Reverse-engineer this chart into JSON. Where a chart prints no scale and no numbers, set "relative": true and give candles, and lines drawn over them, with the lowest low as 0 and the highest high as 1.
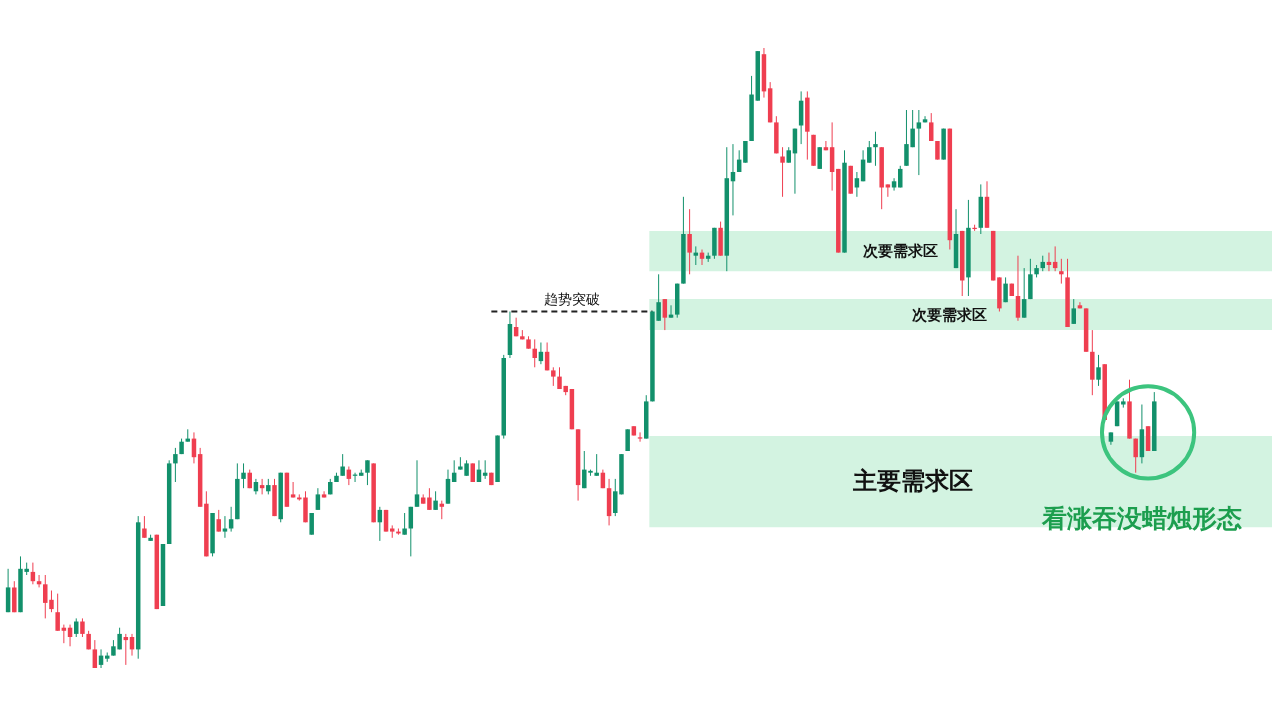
{
  "chart_data": {
    "type": "candlestick",
    "relative": true,
    "categories": [
      null,
      null,
      null,
      null,
      null,
      null,
      null,
      null,
      null,
      null,
      null,
      null,
      null,
      null,
      null,
      null,
      null,
      null,
      null,
      null,
      null,
      null,
      null,
      null,
      null,
      null,
      null,
      null,
      null,
      null,
      null,
      null,
      null,
      null,
      null,
      null,
      null,
      null,
      null,
      null,
      null,
      null,
      null,
      null,
      null,
      null,
      null,
      null,
      null,
      null,
      null,
      null,
      null,
      null,
      null,
      null,
      null,
      null,
      null,
      null,
      null,
      null,
      null,
      null,
      null,
      null,
      null,
      null,
      null,
      null,
      null,
      null,
      null,
      null,
      null,
      null,
      null,
      null,
      null,
      null,
      null,
      null,
      null,
      null,
      null,
      null,
      null,
      null,
      null,
      null,
      null,
      null,
      null,
      null,
      null,
      null,
      null,
      null,
      null,
      null,
      null,
      null,
      null,
      null,
      null,
      null,
      null,
      null,
      null,
      null,
      null,
      null,
      null,
      null,
      null,
      null,
      null,
      null,
      null,
      null,
      null,
      null,
      null,
      null,
      null,
      null,
      null,
      null,
      null,
      null,
      null,
      null,
      null,
      null,
      null,
      null,
      null,
      null,
      null,
      null,
      null,
      null,
      null,
      null,
      null,
      null,
      null,
      null,
      null,
      null,
      null,
      null,
      null,
      null,
      null,
      null,
      null,
      null,
      null,
      null,
      null,
      null,
      null,
      null,
      null,
      null,
      null,
      null,
      null,
      null,
      null,
      null,
      null,
      null,
      null,
      null,
      null,
      null,
      null,
      null,
      null,
      null,
      null,
      null,
      null,
      null
    ],
    "colors": [
      "#12906b",
      "#ef3e50",
      "#12906b",
      "#12906b",
      "#ef3e50",
      "#ef3e50",
      "#ef3e50",
      "#ef3e50",
      "#ef3e50",
      "#ef3e50",
      "#ef3e50",
      "#12906b",
      "#ef3e50",
      "#ef3e50",
      "#ef3e50",
      "#12906b",
      "#12906b",
      "#12906b",
      "#12906b",
      "#ef3e50",
      "#ef3e50",
      "#12906b",
      "#ef3e50",
      "#12906b",
      "#ef3e50",
      "#12906b",
      "#12906b",
      "#12906b",
      "#12906b",
      "#12906b",
      "#ef3e50",
      "#ef3e50",
      "#ef3e50",
      "#12906b",
      "#ef3e50",
      "#12906b",
      "#12906b",
      "#12906b",
      "#12906b",
      "#ef3e50",
      "#12906b",
      "#ef3e50",
      "#12906b",
      "#ef3e50",
      "#12906b",
      "#ef3e50",
      "#ef3e50",
      "#ef3e50",
      "#ef3e50",
      "#12906b",
      "#12906b",
      "#ef3e50",
      "#12906b",
      "#12906b",
      "#12906b",
      "#ef3e50",
      "#12906b",
      "#12906b",
      "#12906b",
      "#ef3e50",
      "#12906b",
      "#ef3e50",
      "#ef3e50",
      "#ef3e50",
      "#12906b",
      "#12906b",
      "#12906b",
      "#ef3e50",
      "#ef3e50",
      "#12906b",
      "#ef3e50",
      "#12906b",
      "#12906b",
      "#12906b",
      "#12906b",
      "#ef3e50",
      "#12906b",
      "#12906b",
      "#ef3e50",
      "#12906b",
      "#12906b",
      "#12906b",
      "#ef3e50",
      "#ef3e50",
      "#ef3e50",
      "#ef3e50",
      "#12906b",
      "#ef3e50",
      "#ef3e50",
      "#ef3e50",
      "#ef3e50",
      "#ef3e50",
      "#ef3e50",
      "#12906b",
      "#12906b",
      "#12906b",
      "#ef3e50",
      "#ef3e50",
      "#12906b",
      "#12906b",
      "#12906b",
      "#ef3e50",
      "#ef3e50",
      "#12906b",
      "#12906b",
      "#12906b",
      "#ef3e50",
      "#12906b",
      "#12906b",
      "#12906b",
      "#ef3e50",
      "#12906b",
      "#ef3e50",
      "#12906b",
      "#12906b",
      "#ef3e50",
      "#12906b",
      "#12906b",
      "#12906b",
      "#12906b",
      "#12906b",
      "#12906b",
      "#ef3e50",
      "#ef3e50",
      "#ef3e50",
      "#ef3e50",
      "#12906b",
      "#12906b",
      "#12906b",
      "#ef3e50",
      "#ef3e50",
      "#12906b",
      "#ef3e50",
      "#ef3e50",
      "#ef3e50",
      "#12906b",
      "#ef3e50",
      "#12906b",
      "#12906b",
      "#12906b",
      "#12906b",
      "#ef3e50",
      "#ef3e50",
      "#12906b",
      "#12906b",
      "#12906b",
      "#12906b",
      "#12906b",
      "#12906b",
      "#ef3e50",
      "#ef3e50",
      "#12906b",
      "#ef3e50",
      "#12906b",
      "#ef3e50",
      "#12906b",
      "#ef3e50",
      "#12906b",
      "#ef3e50",
      "#ef3e50",
      "#ef3e50",
      "#12906b",
      "#ef3e50",
      "#ef3e50",
      "#12906b",
      "#12906b",
      "#12906b",
      "#12906b",
      "#ef3e50",
      "#ef3e50",
      "#ef3e50",
      "#ef3e50",
      "#12906b",
      "#ef3e50",
      "#ef3e50",
      "#ef3e50",
      "#12906b",
      "#ef3e50",
      "#12906b",
      "#12906b",
      "#12906b",
      "#ef3e50",
      "#ef3e50",
      "#12906b",
      "#ef3e50",
      "#12906b"
    ],
    "ohlc": [
      [
        0.09,
        0.16,
        0.09,
        0.13
      ],
      [
        0.13,
        0.14,
        0.09,
        0.09
      ],
      [
        0.09,
        0.18,
        0.09,
        0.16
      ],
      [
        0.155,
        0.17,
        0.15,
        0.16
      ],
      [
        0.155,
        0.17,
        0.135,
        0.14
      ],
      [
        0.14,
        0.15,
        0.13,
        0.135
      ],
      [
        0.135,
        0.15,
        0.08,
        0.105
      ],
      [
        0.11,
        0.125,
        0.09,
        0.095
      ],
      [
        0.09,
        0.12,
        0.06,
        0.06
      ],
      [
        0.065,
        0.07,
        0.04,
        0.06
      ],
      [
        0.065,
        0.07,
        0.035,
        0.05
      ],
      [
        0.055,
        0.08,
        0.05,
        0.075
      ],
      [
        0.075,
        0.08,
        0.05,
        0.055
      ],
      [
        0.055,
        0.06,
        0.03,
        0.03
      ],
      [
        0.03,
        0.045,
        0,
        0
      ],
      [
        0.005,
        0.03,
        0,
        0.02
      ],
      [
        0.015,
        0.025,
        0.01,
        0.02
      ],
      [
        0.02,
        0.045,
        0.02,
        0.035
      ],
      [
        0.03,
        0.065,
        0.03,
        0.055
      ],
      [
        0.05,
        0.055,
        0.005,
        0.045
      ],
      [
        0.05,
        0.055,
        0.02,
        0.03
      ],
      [
        0.03,
        0.245,
        0.015,
        0.235
      ],
      [
        0.225,
        0.245,
        0.21,
        0.21
      ],
      [
        0.205,
        0.215,
        0.205,
        0.21
      ],
      [
        0.215,
        0.215,
        0.095,
        0.095
      ],
      [
        0.1,
        0.2,
        0.1,
        0.2
      ],
      [
        0.2,
        0.335,
        0.2,
        0.33
      ],
      [
        0.33,
        0.355,
        0.3,
        0.345
      ],
      [
        0.345,
        0.37,
        0.345,
        0.365
      ],
      [
        0.365,
        0.385,
        0.365,
        0.37
      ],
      [
        0.37,
        0.38,
        0.33,
        0.34
      ],
      [
        0.345,
        0.355,
        0.26,
        0.26
      ],
      [
        0.265,
        0.285,
        0.18,
        0.18
      ],
      [
        0.185,
        0.25,
        0.18,
        0.25
      ],
      [
        0.24,
        0.255,
        0.22,
        0.22
      ],
      [
        0.22,
        0.245,
        0.21,
        0.225
      ],
      [
        0.225,
        0.26,
        0.22,
        0.24
      ],
      [
        0.24,
        0.33,
        0.24,
        0.305
      ],
      [
        0.305,
        0.33,
        0.29,
        0.315
      ],
      [
        0.315,
        0.32,
        0.29,
        0.29
      ],
      [
        0.285,
        0.305,
        0.28,
        0.3
      ],
      [
        0.295,
        0.305,
        0.28,
        0.29
      ],
      [
        0.285,
        0.305,
        0.28,
        0.295
      ],
      [
        0.295,
        0.305,
        0.245,
        0.245
      ],
      [
        0.24,
        0.315,
        0.235,
        0.315
      ],
      [
        0.315,
        0.315,
        0.26,
        0.26
      ],
      [
        0.28,
        0.3,
        0.275,
        0.275
      ],
      [
        0.275,
        0.28,
        0.27,
        0.272
      ],
      [
        0.275,
        0.285,
        0.235,
        0.235
      ],
      [
        0.215,
        0.25,
        0.215,
        0.25
      ],
      [
        0.255,
        0.29,
        0.255,
        0.28
      ],
      [
        0.28,
        0.285,
        0.275,
        0.275
      ],
      [
        0.28,
        0.305,
        0.28,
        0.3
      ],
      [
        0.3,
        0.315,
        0.3,
        0.31
      ],
      [
        0.31,
        0.345,
        0.31,
        0.325
      ],
      [
        0.32,
        0.325,
        0.295,
        0.305
      ],
      [
        0.31,
        0.315,
        0.3,
        0.312
      ],
      [
        0.31,
        0.32,
        0.31,
        0.315
      ],
      [
        0.315,
        0.335,
        0.295,
        0.335
      ],
      [
        0.33,
        0.33,
        0.235,
        0.235
      ],
      [
        0.235,
        0.26,
        0.205,
        0.255
      ],
      [
        0.255,
        0.255,
        0.22,
        0.22
      ],
      [
        0.225,
        0.23,
        0.21,
        0.22
      ],
      [
        0.22,
        0.225,
        0.215,
        0.217
      ],
      [
        0.215,
        0.25,
        0.215,
        0.225
      ],
      [
        0.225,
        0.26,
        0.18,
        0.26
      ],
      [
        0.26,
        0.335,
        0.26,
        0.28
      ],
      [
        0.275,
        0.28,
        0.265,
        0.265
      ],
      [
        0.275,
        0.29,
        0.255,
        0.255
      ],
      [
        0.255,
        0.285,
        0.255,
        0.27
      ],
      [
        0.265,
        0.27,
        0.24,
        0.26
      ],
      [
        0.265,
        0.32,
        0.265,
        0.305
      ],
      [
        0.3,
        0.335,
        0.3,
        0.315
      ],
      [
        0.32,
        0.34,
        0.32,
        0.325
      ],
      [
        0.31,
        0.335,
        0.31,
        0.33
      ],
      [
        0.33,
        0.33,
        0.3,
        0.3
      ],
      [
        0.3,
        0.335,
        0.3,
        0.32
      ],
      [
        0.31,
        0.335,
        0.305,
        0.315
      ],
      [
        0.315,
        0.315,
        0.295,
        0.295
      ],
      [
        0.3,
        0.375,
        0.3,
        0.375
      ],
      [
        0.375,
        0.505,
        0.37,
        0.5
      ],
      [
        0.505,
        0.575,
        0.5,
        0.555
      ],
      [
        0.55,
        0.565,
        0.535,
        0.535
      ],
      [
        0.535,
        0.545,
        0.53,
        0.53
      ],
      [
        0.53,
        0.535,
        0.515,
        0.515
      ],
      [
        0.515,
        0.53,
        0.485,
        0.5
      ],
      [
        0.495,
        0.525,
        0.49,
        0.51
      ],
      [
        0.51,
        0.525,
        0.48,
        0.48
      ],
      [
        0.48,
        0.485,
        0.455,
        0.47
      ],
      [
        0.47,
        0.485,
        0.45,
        0.45
      ],
      [
        0.455,
        0.455,
        0.44,
        0.445
      ],
      [
        0.45,
        0.45,
        0.385,
        0.385
      ],
      [
        0.385,
        0.385,
        0.27,
        0.295
      ],
      [
        0.29,
        0.35,
        0.29,
        0.32
      ],
      [
        0.315,
        0.32,
        0.31,
        0.318
      ],
      [
        0.31,
        0.345,
        0.31,
        0.315
      ],
      [
        0.315,
        0.32,
        0.29,
        0.29
      ],
      [
        0.29,
        0.305,
        0.23,
        0.245
      ],
      [
        0.25,
        0.305,
        0.245,
        0.285
      ],
      [
        0.28,
        0.345,
        0.28,
        0.345
      ],
      [
        0.35,
        0.385,
        0.35,
        0.385
      ],
      [
        0.39,
        0.39,
        0.375,
        0.375
      ],
      [
        0.372,
        0.38,
        0.365,
        0.37
      ],
      [
        0.37,
        0.44,
        0.37,
        0.43
      ],
      [
        0.43,
        0.575,
        0.43,
        0.575
      ],
      [
        0.56,
        0.635,
        0.56,
        0.59
      ],
      [
        0.595,
        0.595,
        0.545,
        0.565
      ],
      [
        0.565,
        0.585,
        0.565,
        0.57
      ],
      [
        0.57,
        0.62,
        0.565,
        0.62
      ],
      [
        0.62,
        0.76,
        0.62,
        0.7
      ],
      [
        0.7,
        0.74,
        0.635,
        0.67
      ],
      [
        0.665,
        0.68,
        0.65,
        0.67
      ],
      [
        0.67,
        0.675,
        0.65,
        0.66
      ],
      [
        0.66,
        0.67,
        0.655,
        0.665
      ],
      [
        0.665,
        0.71,
        0.66,
        0.71
      ],
      [
        0.71,
        0.72,
        0.665,
        0.665
      ],
      [
        0.665,
        0.84,
        0.64,
        0.79
      ],
      [
        0.785,
        0.845,
        0.73,
        0.8
      ],
      [
        0.8,
        0.835,
        0.8,
        0.82
      ],
      [
        0.815,
        0.85,
        0.815,
        0.85
      ],
      [
        0.85,
        0.955,
        0.85,
        0.925
      ],
      [
        0.915,
        0.995,
        0.915,
        0.995
      ],
      [
        0.99,
        1,
        0.92,
        0.93
      ],
      [
        0.935,
        0.945,
        0.88,
        0.88
      ],
      [
        0.88,
        0.89,
        0.83,
        0.83
      ],
      [
        0.825,
        0.84,
        0.76,
        0.815
      ],
      [
        0.815,
        0.84,
        0.815,
        0.835
      ],
      [
        0.83,
        0.87,
        0.765,
        0.87
      ],
      [
        0.875,
        0.93,
        0.845,
        0.915
      ],
      [
        0.92,
        0.93,
        0.82,
        0.865
      ],
      [
        0.86,
        0.86,
        0.81,
        0.81
      ],
      [
        0.805,
        0.84,
        0.805,
        0.84
      ],
      [
        0.84,
        0.85,
        0.835,
        0.835
      ],
      [
        0.84,
        0.88,
        0.77,
        0.8
      ],
      [
        0.805,
        0.805,
        0.67,
        0.67
      ],
      [
        0.67,
        0.835,
        0.67,
        0.815
      ],
      [
        0.81,
        0.81,
        0.765,
        0.765
      ],
      [
        0.775,
        0.8,
        0.76,
        0.79
      ],
      [
        0.785,
        0.835,
        0.785,
        0.82
      ],
      [
        0.815,
        0.85,
        0.815,
        0.84
      ],
      [
        0.84,
        0.865,
        0.81,
        0.845
      ],
      [
        0.84,
        0.84,
        0.74,
        0.775
      ],
      [
        0.78,
        0.78,
        0.76,
        0.775
      ],
      [
        0.775,
        0.79,
        0.77,
        0.785
      ],
      [
        0.775,
        0.81,
        0.775,
        0.805
      ],
      [
        0.81,
        0.9,
        0.81,
        0.845
      ],
      [
        0.84,
        0.9,
        0.84,
        0.87
      ],
      [
        0.87,
        0.9,
        0.795,
        0.88
      ],
      [
        0.88,
        0.89,
        0.88,
        0.885
      ],
      [
        0.88,
        0.895,
        0.85,
        0.85
      ],
      [
        0.85,
        0.85,
        0.82,
        0.82
      ],
      [
        0.82,
        0.87,
        0.82,
        0.87
      ],
      [
        0.87,
        0.87,
        0.675,
        0.69
      ],
      [
        0.645,
        0.74,
        0.645,
        0.7
      ],
      [
        0.705,
        0.705,
        0.6,
        0.625
      ],
      [
        0.63,
        0.755,
        0.6,
        0.71
      ],
      [
        0.71,
        0.715,
        0.705,
        0.708
      ],
      [
        0.71,
        0.78,
        0.7,
        0.76
      ],
      [
        0.76,
        0.785,
        0.71,
        0.71
      ],
      [
        0.705,
        0.705,
        0.625,
        0.625
      ],
      [
        0.63,
        0.63,
        0.575,
        0.58
      ],
      [
        0.59,
        0.63,
        0.59,
        0.62
      ],
      [
        0.62,
        0.62,
        0.6,
        0.6
      ],
      [
        0.6,
        0.665,
        0.56,
        0.565
      ],
      [
        0.565,
        0.645,
        0.565,
        0.595
      ],
      [
        0.595,
        0.66,
        0.595,
        0.635
      ],
      [
        0.635,
        0.65,
        0.63,
        0.645
      ],
      [
        0.645,
        0.665,
        0.64,
        0.655
      ],
      [
        0.655,
        0.67,
        0.64,
        0.65
      ],
      [
        0.655,
        0.68,
        0.64,
        0.645
      ],
      [
        0.64,
        0.66,
        0.62,
        0.635
      ],
      [
        0.63,
        0.66,
        0.55,
        0.55
      ],
      [
        0.555,
        0.595,
        0.555,
        0.58
      ],
      [
        0.585,
        0.59,
        0.58,
        0.58
      ],
      [
        0.58,
        0.58,
        0.51,
        0.51
      ],
      [
        0.51,
        0.545,
        0.44,
        0.465
      ],
      [
        0.465,
        0.505,
        0.455,
        0.485
      ],
      [
        0.49,
        0.49,
        0.4,
        0.4
      ],
      [
        0.365,
        0.38,
        0.36,
        0.38
      ],
      [
        0.39,
        0.43,
        0.39,
        0.43
      ],
      [
        0.425,
        0.435,
        0.42,
        0.43
      ],
      [
        0.43,
        0.465,
        0.37,
        0.37
      ],
      [
        0.37,
        0.37,
        0.315,
        0.34
      ],
      [
        0.34,
        0.425,
        0.33,
        0.385
      ],
      [
        0.39,
        0.39,
        0.35,
        0.35
      ],
      [
        0.35,
        0.445,
        0.35,
        0.43
      ]
    ],
    "bands": [
      {
        "axis": "y",
        "from": 0.64,
        "to": 0.705,
        "label": "次要需求区",
        "color": "#d3f3e1"
      },
      {
        "axis": "y",
        "from": 0.545,
        "to": 0.595,
        "label": "次要需求区",
        "color": "#d3f3e1"
      },
      {
        "axis": "y",
        "from": 0.227,
        "to": 0.374,
        "label": "主要需求区",
        "color": "#d3f3e1"
      }
    ],
    "ref_lines": [
      {
        "axis": "y",
        "value": 0.575,
        "label": "趋势突破",
        "color": "#222222",
        "line_style": "dashed"
      }
    ],
    "annotations": [
      {
        "text": "看涨吞没蜡烛形态",
        "y": 0.38
      }
    ]
  }
}
